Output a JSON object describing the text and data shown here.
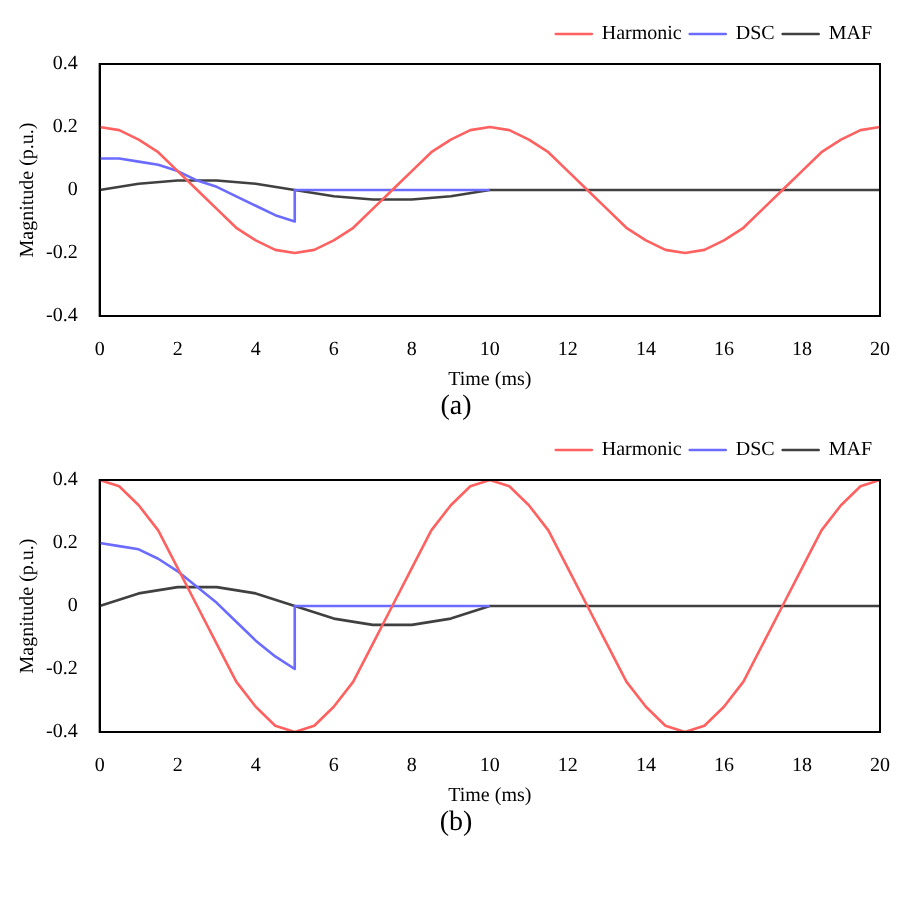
{
  "chart_data": [
    {
      "type": "line",
      "xlabel": "Time (ms)",
      "ylabel": "Magnitude (p.u.)",
      "xlim": [
        0,
        20
      ],
      "xticks": [
        0,
        2,
        4,
        6,
        8,
        10,
        12,
        14,
        16,
        18,
        20
      ],
      "ylim": [
        -0.4,
        0.4
      ],
      "yticks": [
        -0.4,
        -0.2,
        0,
        0.2,
        0.4
      ],
      "grid": false,
      "legend": "top right",
      "marker": "none",
      "annotations": [
        "(a)"
      ],
      "series": [
        {
          "name": "Harmonic",
          "color": "#ff6060",
          "x": [
            0,
            0.5,
            1,
            1.5,
            2,
            2.5,
            3,
            3.5,
            4,
            4.5,
            5,
            5.5,
            6,
            6.5,
            7,
            7.5,
            8,
            8.5,
            9,
            9.5,
            10,
            10.5,
            11,
            11.5,
            12,
            12.5,
            13,
            13.5,
            14,
            14.5,
            15,
            15.5,
            16,
            16.5,
            17,
            17.5,
            18,
            18.5,
            19,
            19.5,
            20
          ],
          "values": [
            0.2,
            0.19,
            0.16,
            0.12,
            0.06,
            0,
            -0.06,
            -0.12,
            -0.16,
            -0.19,
            -0.2,
            -0.19,
            -0.16,
            -0.12,
            -0.06,
            0,
            0.06,
            0.12,
            0.16,
            0.19,
            0.2,
            0.19,
            0.16,
            0.12,
            0.06,
            0,
            -0.06,
            -0.12,
            -0.16,
            -0.19,
            -0.2,
            -0.19,
            -0.16,
            -0.12,
            -0.06,
            0,
            0.06,
            0.12,
            0.16,
            0.19,
            0.2
          ]
        },
        {
          "name": "DSC",
          "color": "#6b6bff",
          "x": [
            0,
            0.5,
            1,
            1.5,
            2,
            2.5,
            3,
            3.5,
            4,
            4.5,
            5,
            5,
            10
          ],
          "values": [
            0.1,
            0.1,
            0.09,
            0.08,
            0.06,
            0.03,
            0.01,
            -0.02,
            -0.05,
            -0.08,
            -0.1,
            0,
            0
          ]
        },
        {
          "name": "MAF",
          "color": "#404040",
          "x": [
            0,
            1,
            2,
            3,
            4,
            5,
            6,
            7,
            8,
            9,
            10,
            20
          ],
          "values": [
            0,
            0.02,
            0.03,
            0.03,
            0.02,
            0,
            -0.02,
            -0.03,
            -0.03,
            -0.02,
            0,
            0
          ]
        }
      ]
    },
    {
      "type": "line",
      "xlabel": "Time (ms)",
      "ylabel": "Magnitude (p.u.)",
      "xlim": [
        0,
        20
      ],
      "xticks": [
        0,
        2,
        4,
        6,
        8,
        10,
        12,
        14,
        16,
        18,
        20
      ],
      "ylim": [
        -0.4,
        0.4
      ],
      "yticks": [
        -0.4,
        -0.2,
        0,
        0.2,
        0.4
      ],
      "grid": false,
      "legend": "top right",
      "marker": "none",
      "annotations": [
        "(b)"
      ],
      "series": [
        {
          "name": "Harmonic",
          "color": "#ff6060",
          "x": [
            0,
            0.5,
            1,
            1.5,
            2,
            2.5,
            3,
            3.5,
            4,
            4.5,
            5,
            5.5,
            6,
            6.5,
            7,
            7.5,
            8,
            8.5,
            9,
            9.5,
            10,
            10.5,
            11,
            11.5,
            12,
            12.5,
            13,
            13.5,
            14,
            14.5,
            15,
            15.5,
            16,
            16.5,
            17,
            17.5,
            18,
            18.5,
            19,
            19.5,
            20
          ],
          "values": [
            0.4,
            0.38,
            0.32,
            0.24,
            0.12,
            0,
            -0.12,
            -0.24,
            -0.32,
            -0.38,
            -0.4,
            -0.38,
            -0.32,
            -0.24,
            -0.12,
            0,
            0.12,
            0.24,
            0.32,
            0.38,
            0.4,
            0.38,
            0.32,
            0.24,
            0.12,
            0,
            -0.12,
            -0.24,
            -0.32,
            -0.38,
            -0.4,
            -0.38,
            -0.32,
            -0.24,
            -0.12,
            0,
            0.12,
            0.24,
            0.32,
            0.38,
            0.4
          ]
        },
        {
          "name": "DSC",
          "color": "#6b6bff",
          "x": [
            0,
            0.5,
            1,
            1.5,
            2,
            2.5,
            3,
            3.5,
            4,
            4.5,
            5,
            5,
            10
          ],
          "values": [
            0.2,
            0.19,
            0.18,
            0.15,
            0.11,
            0.06,
            0.01,
            -0.05,
            -0.11,
            -0.16,
            -0.2,
            0,
            0
          ]
        },
        {
          "name": "MAF",
          "color": "#404040",
          "x": [
            0,
            1,
            2,
            3,
            4,
            5,
            6,
            7,
            8,
            9,
            10,
            20
          ],
          "values": [
            0,
            0.04,
            0.06,
            0.06,
            0.04,
            0,
            -0.04,
            -0.06,
            -0.06,
            -0.04,
            0,
            0
          ]
        }
      ]
    }
  ]
}
